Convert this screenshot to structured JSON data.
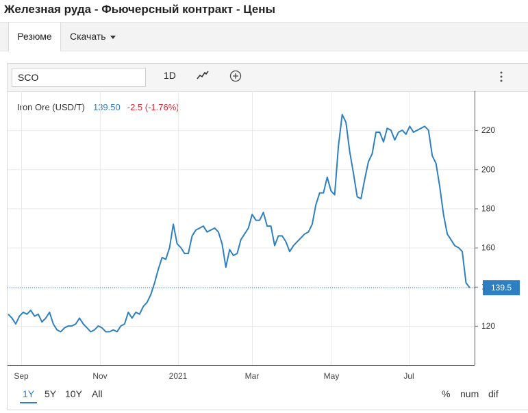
{
  "page": {
    "title": "Железная руда - Фьючерсный контракт - Цены"
  },
  "tabs": {
    "summary": "Резюме",
    "download": "Скачать"
  },
  "toolbar": {
    "symbol": "SCO",
    "interval": "1D",
    "trend_icon": "line-chart-icon",
    "add_icon": "plus-circle-icon",
    "more_icon": "vertical-dots-icon"
  },
  "legend": {
    "name": "Iron Ore (USD/T)",
    "price": "139.50",
    "change": "-2.5 (-1.76%)"
  },
  "ranges": {
    "items": [
      "1Y",
      "5Y",
      "10Y",
      "All"
    ],
    "active": "1Y",
    "modes": [
      "%",
      "num",
      "dif"
    ]
  },
  "colors": {
    "line": "#2d7fc1",
    "change_negative": "#e0262e",
    "text": "#222222"
  },
  "chart_data": {
    "type": "line",
    "title": "",
    "xlabel": "",
    "ylabel": "",
    "x_ticks": [
      "Sep",
      "Nov",
      "2021",
      "Mar",
      "May",
      "Jul"
    ],
    "y_ticks": [
      120,
      140,
      160,
      180,
      200,
      220
    ],
    "ylim": [
      100,
      240
    ],
    "grid": true,
    "current_value": 139.5,
    "current_label": "139.5",
    "series": [
      {
        "values": [
          126,
          124,
          121,
          125,
          127,
          126,
          128,
          125,
          126,
          122,
          124,
          127,
          121,
          118,
          117,
          119,
          120,
          120,
          121,
          124,
          121,
          119,
          117,
          118,
          120,
          119,
          117,
          117,
          118,
          117,
          120,
          121,
          127,
          124,
          127,
          126,
          130,
          132,
          136,
          142,
          149,
          155,
          154,
          160,
          172,
          162,
          160,
          157,
          157,
          166,
          169,
          170,
          171,
          168,
          169,
          170,
          168,
          162,
          150,
          159,
          156,
          157,
          164,
          167,
          170,
          177,
          174,
          174,
          178,
          171,
          171,
          161,
          166,
          166,
          163,
          158,
          161,
          163,
          165,
          167,
          168,
          172,
          182,
          188,
          188,
          196,
          189,
          187,
          212,
          228,
          224,
          209,
          198,
          186,
          185,
          195,
          204,
          208,
          219,
          219,
          214,
          221,
          220,
          215,
          219,
          220,
          218,
          222,
          219,
          220,
          221,
          222,
          220,
          207,
          203,
          191,
          177,
          167,
          164,
          161,
          160,
          158,
          142,
          139.5
        ]
      }
    ]
  }
}
